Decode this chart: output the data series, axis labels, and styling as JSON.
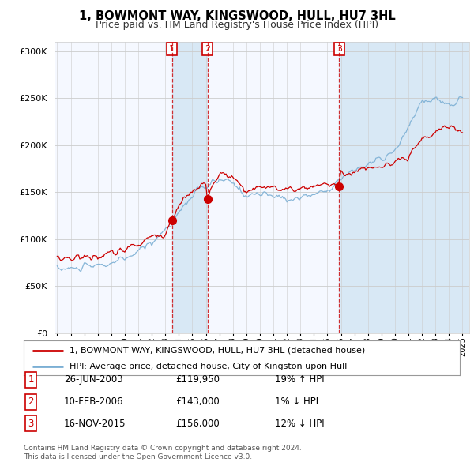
{
  "title": "1, BOWMONT WAY, KINGSWOOD, HULL, HU7 3HL",
  "subtitle": "Price paid vs. HM Land Registry's House Price Index (HPI)",
  "legend_line1": "1, BOWMONT WAY, KINGSWOOD, HULL, HU7 3HL (detached house)",
  "legend_line2": "HPI: Average price, detached house, City of Kingston upon Hull",
  "footer1": "Contains HM Land Registry data © Crown copyright and database right 2024.",
  "footer2": "This data is licensed under the Open Government Licence v3.0.",
  "transactions": [
    {
      "num": "1",
      "date": "26-JUN-2003",
      "price": "£119,950",
      "change": "19% ↑ HPI",
      "year": 2003.49,
      "price_val": 119950
    },
    {
      "num": "2",
      "date": "10-FEB-2006",
      "price": "£143,000",
      "change": "1% ↓ HPI",
      "year": 2006.12,
      "price_val": 143000
    },
    {
      "num": "3",
      "date": "16-NOV-2015",
      "price": "£156,000",
      "change": "12% ↓ HPI",
      "year": 2015.88,
      "price_val": 156000
    }
  ],
  "hpi_color": "#7bafd4",
  "hpi_fill_color": "#c8dff0",
  "price_color": "#cc0000",
  "background_color": "#ffffff",
  "plot_bg": "#f5f8ff",
  "shade_color": "#d8e8f5",
  "ylim": [
    0,
    310000
  ],
  "xlim_start": 1994.8,
  "xlim_end": 2025.5,
  "grid_color": "#cccccc"
}
